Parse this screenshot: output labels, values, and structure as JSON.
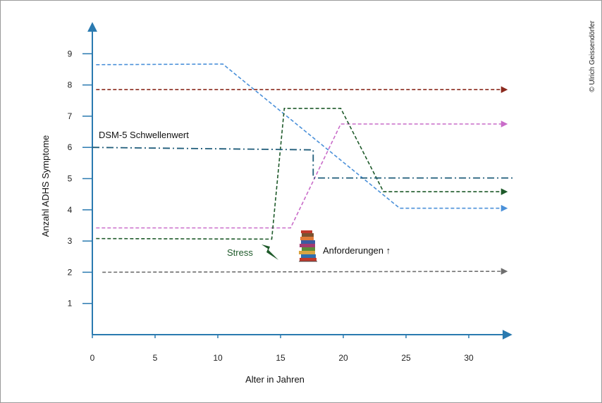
{
  "copyright": "© Ulrich Geissendörfer",
  "chart_data": {
    "type": "line",
    "xlabel": "Alter in Jahren",
    "ylabel": "Anzahl ADHS Symptome",
    "xlim": [
      0,
      34
    ],
    "ylim": [
      0,
      10
    ],
    "x_ticks": [
      0,
      5,
      10,
      15,
      20,
      25,
      30
    ],
    "y_ticks": [
      1,
      2,
      3,
      4,
      5,
      6,
      7,
      8,
      9
    ],
    "grid": false,
    "legend": "none",
    "series": [
      {
        "color": "#4a90d9",
        "dash": "dashed",
        "arrow": true,
        "points": [
          [
            0.3,
            8.65
          ],
          [
            10.4,
            8.67
          ],
          [
            24.5,
            4.05
          ],
          [
            33.0,
            4.05
          ]
        ]
      },
      {
        "color": "#8b2a1e",
        "dash": "dashed",
        "arrow": true,
        "points": [
          [
            0.3,
            7.85
          ],
          [
            33.0,
            7.85
          ]
        ]
      },
      {
        "color": "#c96cc9",
        "dash": "dashed",
        "arrow": true,
        "points": [
          [
            0.3,
            3.42
          ],
          [
            15.8,
            3.42
          ],
          [
            19.8,
            6.75
          ],
          [
            33.0,
            6.75
          ]
        ]
      },
      {
        "color": "#1e5a2a",
        "dash": "dashed",
        "arrow": true,
        "points": [
          [
            0.3,
            3.08
          ],
          [
            14.3,
            3.06
          ],
          [
            15.3,
            7.25
          ],
          [
            19.8,
            7.25
          ],
          [
            23.2,
            4.58
          ],
          [
            33.0,
            4.58
          ]
        ]
      },
      {
        "color": "#6e6e6e",
        "dash": "dashed",
        "arrow": true,
        "points": [
          [
            0.8,
            2.0
          ],
          [
            33.0,
            2.03
          ]
        ]
      },
      {
        "name": "DSM-5 Schwellenwert",
        "color": "#1f5c7a",
        "dash": "dashdot",
        "arrow": false,
        "points": [
          [
            0.0,
            6.0
          ],
          [
            17.6,
            5.92
          ],
          [
            17.6,
            5.02
          ],
          [
            33.5,
            5.02
          ]
        ]
      }
    ],
    "annotations": {
      "threshold_label": "DSM-5 Schwellenwert",
      "stress_label": "Stress",
      "demands_label": "Anforderungen ↑",
      "stress_color": "#1e5a2a",
      "stress_icon": "lightning-icon",
      "demands_icon": "book-stack-icon"
    }
  }
}
